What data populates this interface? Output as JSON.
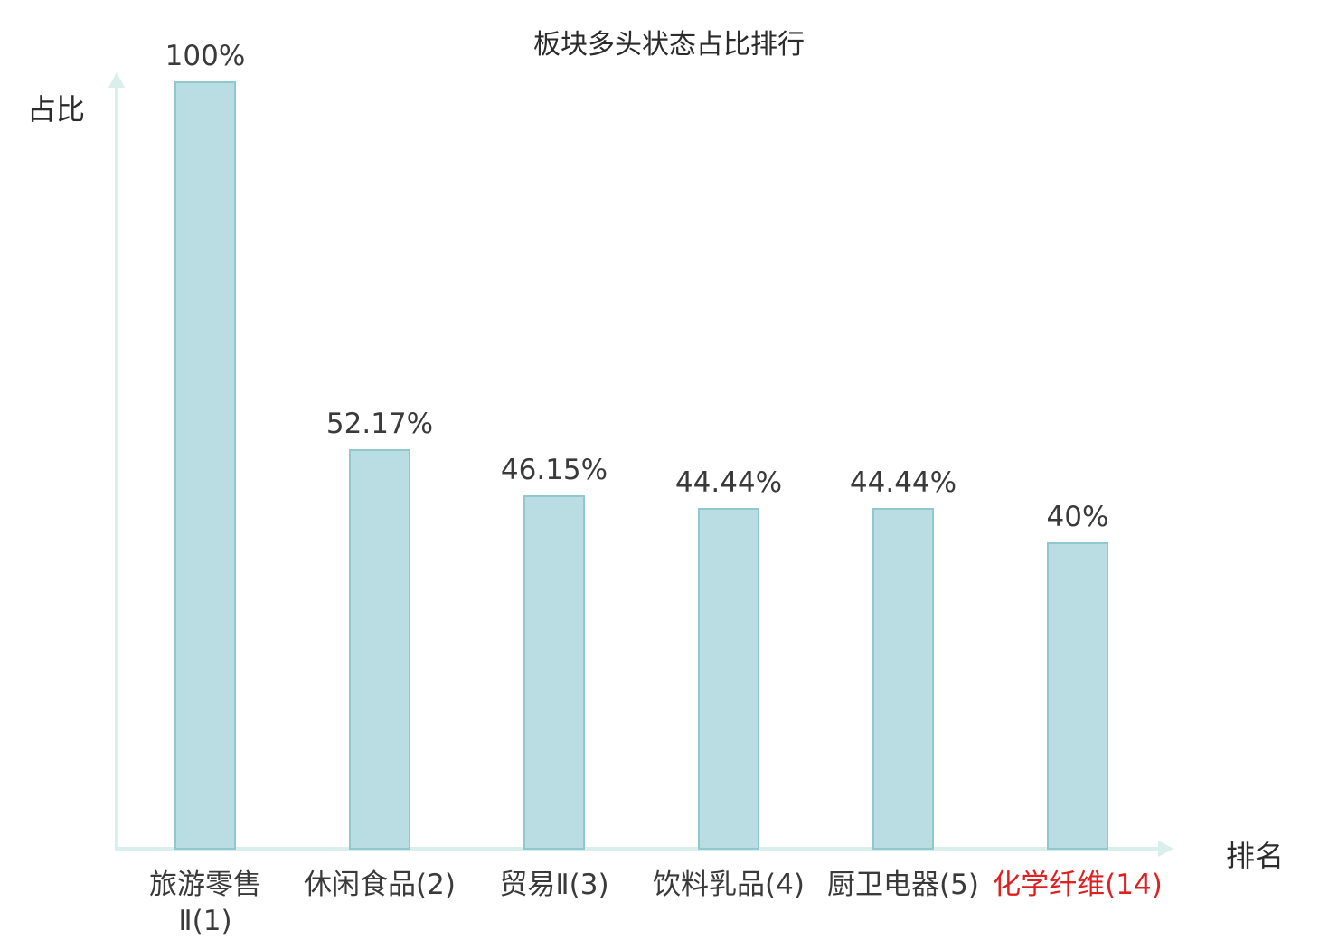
{
  "chart_data": {
    "type": "bar",
    "title": "板块多头状态占比排行",
    "ylabel": "占比",
    "xlabel": "排名",
    "categories": [
      "旅游零售\nⅡ(1)",
      "休闲食品(2)",
      "贸易Ⅱ(3)",
      "饮料乳品(4)",
      "厨卫电器(5)",
      "化学纤维(14)"
    ],
    "values": [
      100,
      52.17,
      46.15,
      44.44,
      44.44,
      40
    ],
    "value_labels": [
      "100%",
      "52.17%",
      "46.15%",
      "44.44%",
      "44.44%",
      "40%"
    ],
    "ylim": [
      0,
      100
    ],
    "grid": false,
    "legend": "none",
    "highlight_index": 5,
    "highlight_color": "#e02020",
    "bar_fill": "#b9dde2",
    "bar_border": "#8fc8ce",
    "axis_color": "#d9efeb",
    "text_color": "#3a3a3a"
  }
}
